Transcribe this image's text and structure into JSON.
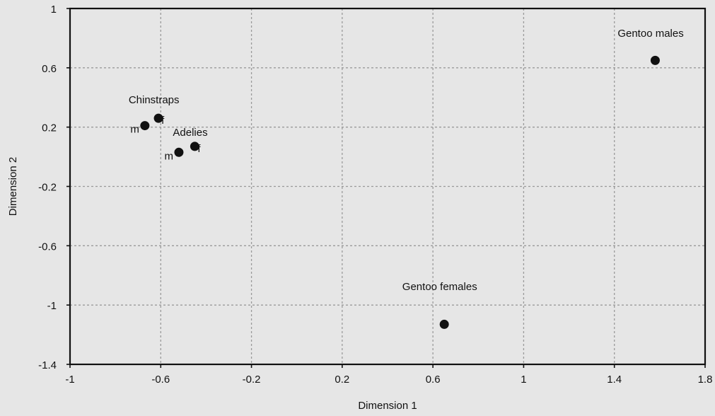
{
  "chart_data": {
    "type": "scatter",
    "xlabel": "Dimension 1",
    "ylabel": "Dimension 2",
    "xlim": [
      -1,
      1.8
    ],
    "ylim": [
      -1.4,
      1
    ],
    "x_ticks": [
      -1,
      -0.6,
      -0.2,
      0.2,
      0.6,
      1,
      1.4,
      1.8
    ],
    "y_ticks": [
      -1.4,
      -1,
      -0.6,
      -0.2,
      0.2,
      0.6,
      1
    ],
    "x_tick_labels": [
      "-1",
      "-0.6",
      "-0.2",
      "0.2",
      "0.6",
      "1",
      "1.4",
      "1.8"
    ],
    "y_tick_labels": [
      "-1.4",
      "-1",
      "-0.6",
      "-0.2",
      "0.2",
      "0.6",
      "1"
    ],
    "grid": true,
    "points": [
      {
        "x": -0.67,
        "y": 0.21,
        "label": "m"
      },
      {
        "x": -0.61,
        "y": 0.26,
        "label": "f"
      },
      {
        "x": -0.52,
        "y": 0.03,
        "label": "m"
      },
      {
        "x": -0.45,
        "y": 0.07,
        "label": "f"
      },
      {
        "x": 1.58,
        "y": 0.65,
        "label": ""
      },
      {
        "x": 0.65,
        "y": -1.13,
        "label": ""
      }
    ],
    "annotations": [
      {
        "text": "Chinstraps",
        "x": -0.63,
        "y": 0.36
      },
      {
        "text": "Adelies",
        "x": -0.47,
        "y": 0.14
      },
      {
        "text": "Gentoo males",
        "x": 1.56,
        "y": 0.81
      },
      {
        "text": "Gentoo females",
        "x": 0.63,
        "y": -0.9
      }
    ]
  }
}
